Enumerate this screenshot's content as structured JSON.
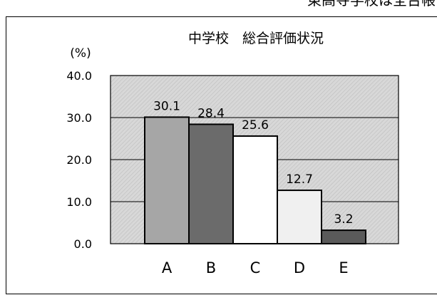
{
  "header_fragment": "東高寺学校は全台帳",
  "colors": {
    "plot_background": "#d2d2d2",
    "bar_A": "#a6a6a6",
    "bar_B": "#6b6b6b",
    "bar_C": "#ffffff",
    "bar_D": "#f0f0f0",
    "bar_E": "#5a5a5a",
    "gridline": "#000000"
  },
  "chart_data": {
    "type": "bar",
    "title": "中学校　総合評価状況",
    "unit_label": "(%)",
    "categories": [
      "A",
      "B",
      "C",
      "D",
      "E"
    ],
    "values": [
      30.1,
      28.4,
      25.6,
      12.7,
      3.2
    ],
    "data_labels": [
      "30.1",
      "28.4",
      "25.6",
      "12.7",
      "3.2"
    ],
    "ytick_labels": [
      "0.0",
      "10.0",
      "20.0",
      "30.0",
      "40.0"
    ],
    "ylim": [
      0,
      40
    ],
    "ytick_step": 10,
    "grid": true,
    "legend": "none",
    "xlabel": "",
    "ylabel": ""
  }
}
